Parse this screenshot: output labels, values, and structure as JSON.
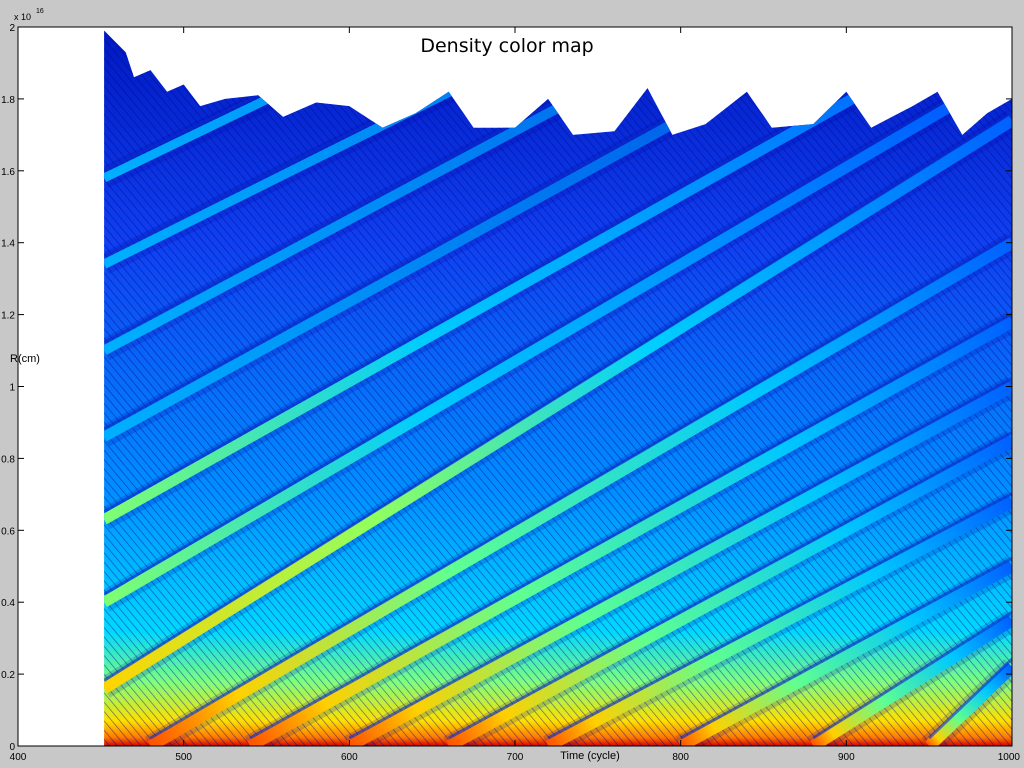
{
  "chart_data": {
    "type": "heatmap",
    "title": "Density color map",
    "xlabel": "Time (cycle)",
    "ylabel": "R(cm)",
    "y_exponent_base": "x 10",
    "y_exponent_power": "16",
    "xlim": [
      400,
      1000
    ],
    "ylim": [
      0,
      2
    ],
    "xticks": [
      400,
      500,
      600,
      700,
      800,
      900,
      1000
    ],
    "yticks": [
      0,
      0.2,
      0.4,
      0.6,
      0.8,
      1,
      1.2,
      1.4,
      1.6,
      1.8,
      2
    ],
    "ytick_labels": [
      "0",
      "0.2",
      "0.4",
      "0.6",
      "0.8",
      "1",
      "1.2",
      "1.4",
      "1.6",
      "1.8",
      "2"
    ],
    "xtick_labels": [
      "400",
      "500",
      "600",
      "700",
      "800",
      "900",
      "1000"
    ],
    "data_start_time": 452,
    "outer_boundary": [
      {
        "x": 452,
        "y": 1.99
      },
      {
        "x": 465,
        "y": 1.93
      },
      {
        "x": 470,
        "y": 1.86
      },
      {
        "x": 480,
        "y": 1.88
      },
      {
        "x": 490,
        "y": 1.82
      },
      {
        "x": 500,
        "y": 1.84
      },
      {
        "x": 510,
        "y": 1.78
      },
      {
        "x": 525,
        "y": 1.8
      },
      {
        "x": 545,
        "y": 1.81
      },
      {
        "x": 560,
        "y": 1.75
      },
      {
        "x": 580,
        "y": 1.79
      },
      {
        "x": 600,
        "y": 1.78
      },
      {
        "x": 620,
        "y": 1.72
      },
      {
        "x": 640,
        "y": 1.76
      },
      {
        "x": 660,
        "y": 1.82
      },
      {
        "x": 675,
        "y": 1.72
      },
      {
        "x": 700,
        "y": 1.72
      },
      {
        "x": 720,
        "y": 1.8
      },
      {
        "x": 735,
        "y": 1.7
      },
      {
        "x": 760,
        "y": 1.71
      },
      {
        "x": 780,
        "y": 1.83
      },
      {
        "x": 795,
        "y": 1.7
      },
      {
        "x": 815,
        "y": 1.73
      },
      {
        "x": 840,
        "y": 1.82
      },
      {
        "x": 855,
        "y": 1.72
      },
      {
        "x": 880,
        "y": 1.73
      },
      {
        "x": 900,
        "y": 1.82
      },
      {
        "x": 915,
        "y": 1.72
      },
      {
        "x": 940,
        "y": 1.78
      },
      {
        "x": 955,
        "y": 1.82
      },
      {
        "x": 970,
        "y": 1.7
      },
      {
        "x": 985,
        "y": 1.76
      },
      {
        "x": 1000,
        "y": 1.8
      }
    ],
    "high_density_bands": [
      {
        "start_time": 452,
        "start_r": 0.16,
        "end_time": 1000,
        "end_r": 1.74
      },
      {
        "start_time": 452,
        "start_r": 0.4,
        "end_time": 1000,
        "end_r": 1.88
      },
      {
        "start_time": 452,
        "start_r": 0.63,
        "end_time": 1000,
        "end_r": 2.05
      },
      {
        "start_time": 452,
        "start_r": 0.86,
        "end_time": 1000,
        "end_r": 2.25
      },
      {
        "start_time": 452,
        "start_r": 1.1,
        "end_time": 1000,
        "end_r": 2.45
      },
      {
        "start_time": 452,
        "start_r": 1.34,
        "end_time": 1000,
        "end_r": 2.6
      },
      {
        "start_time": 452,
        "start_r": 1.58,
        "end_time": 1000,
        "end_r": 2.8
      },
      {
        "start_time": 480,
        "start_r": 0.0,
        "end_time": 1000,
        "end_r": 1.4
      },
      {
        "start_time": 540,
        "start_r": 0.0,
        "end_time": 1000,
        "end_r": 1.18
      },
      {
        "start_time": 600,
        "start_r": 0.0,
        "end_time": 1000,
        "end_r": 1.0
      },
      {
        "start_time": 660,
        "start_r": 0.0,
        "end_time": 1000,
        "end_r": 0.85
      },
      {
        "start_time": 720,
        "start_r": 0.0,
        "end_time": 1000,
        "end_r": 0.68
      },
      {
        "start_time": 800,
        "start_r": 0.0,
        "end_time": 1000,
        "end_r": 0.5
      },
      {
        "start_time": 880,
        "start_r": 0.0,
        "end_time": 1000,
        "end_r": 0.35
      },
      {
        "start_time": 950,
        "start_r": 0.0,
        "end_time": 1000,
        "end_r": 0.22
      }
    ],
    "colormap": [
      "#00008f",
      "#0000ff",
      "#0070ff",
      "#00ccff",
      "#40ffbf",
      "#bfff40",
      "#ffe000",
      "#ff7000",
      "#e00000"
    ],
    "grid": false,
    "legend": "none"
  }
}
